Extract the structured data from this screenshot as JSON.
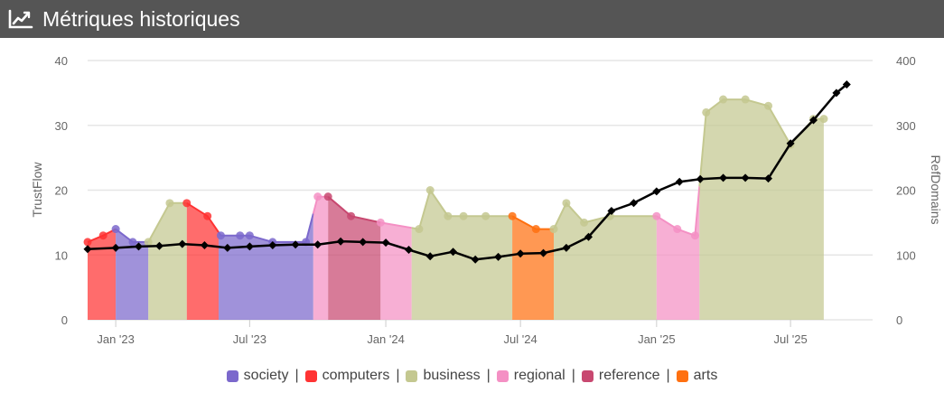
{
  "header": {
    "title": "Métriques historiques",
    "icon": "line-chart-icon"
  },
  "chart_data": {
    "type": "area",
    "title": "Métriques historiques",
    "ylabel_left": "TrustFlow",
    "ylabel_right": "RefDomains",
    "ylim_left": [
      0,
      40
    ],
    "ylim_right": [
      0,
      400
    ],
    "yticks_left": [
      0,
      10,
      20,
      30,
      40
    ],
    "yticks_right": [
      0,
      100,
      200,
      300,
      400
    ],
    "xlim": [
      "2022-11-24",
      "2025-10-20"
    ],
    "x_ticks": [
      {
        "date": "2023-01-01",
        "label": "Jan '23"
      },
      {
        "date": "2023-07-01",
        "label": "Jul '23"
      },
      {
        "date": "2024-01-01",
        "label": "Jan '24"
      },
      {
        "date": "2024-07-01",
        "label": "Jul '24"
      },
      {
        "date": "2025-01-01",
        "label": "Jan '25"
      },
      {
        "date": "2025-07-01",
        "label": "Jul '25"
      }
    ],
    "grid": true,
    "legend_position": "bottom-center",
    "categories": [
      {
        "name": "society",
        "color": "#7b68cc"
      },
      {
        "name": "computers",
        "color": "#ff3333"
      },
      {
        "name": "business",
        "color": "#c4c890"
      },
      {
        "name": "regional",
        "color": "#f490c4"
      },
      {
        "name": "reference",
        "color": "#c84870"
      },
      {
        "name": "arts",
        "color": "#ff7010"
      }
    ],
    "trustflow": {
      "points": [
        {
          "date": "2022-11-24",
          "value": 12
        },
        {
          "date": "2022-12-15",
          "value": 13
        },
        {
          "date": "2023-01-01",
          "value": 14
        },
        {
          "date": "2023-01-24",
          "value": 12
        },
        {
          "date": "2023-02-14",
          "value": 12
        },
        {
          "date": "2023-03-15",
          "value": 18
        },
        {
          "date": "2023-04-07",
          "value": 18
        },
        {
          "date": "2023-05-05",
          "value": 16
        },
        {
          "date": "2023-05-23",
          "value": 13
        },
        {
          "date": "2023-06-18",
          "value": 13
        },
        {
          "date": "2023-07-01",
          "value": 13
        },
        {
          "date": "2023-08-01",
          "value": 12
        },
        {
          "date": "2023-09-15",
          "value": 12
        },
        {
          "date": "2023-10-01",
          "value": 19
        },
        {
          "date": "2023-10-15",
          "value": 19
        },
        {
          "date": "2023-11-15",
          "value": 16
        },
        {
          "date": "2023-12-25",
          "value": 15
        },
        {
          "date": "2024-02-15",
          "value": 14
        },
        {
          "date": "2024-03-01",
          "value": 20
        },
        {
          "date": "2024-03-25",
          "value": 16
        },
        {
          "date": "2024-04-15",
          "value": 16
        },
        {
          "date": "2024-05-15",
          "value": 16
        },
        {
          "date": "2024-06-20",
          "value": 16
        },
        {
          "date": "2024-07-22",
          "value": 14
        },
        {
          "date": "2024-08-15",
          "value": 14
        },
        {
          "date": "2024-09-01",
          "value": 18
        },
        {
          "date": "2024-09-25",
          "value": 15
        },
        {
          "date": "2024-10-30",
          "value": 16
        },
        {
          "date": "2025-01-01",
          "value": 16
        },
        {
          "date": "2025-01-29",
          "value": 14
        },
        {
          "date": "2025-02-22",
          "value": 13
        },
        {
          "date": "2025-03-09",
          "value": 32
        },
        {
          "date": "2025-04-01",
          "value": 34
        },
        {
          "date": "2025-05-01",
          "value": 34
        },
        {
          "date": "2025-06-01",
          "value": 33
        },
        {
          "date": "2025-07-01",
          "value": 27
        },
        {
          "date": "2025-08-01",
          "value": 31
        },
        {
          "date": "2025-08-15",
          "value": 31
        }
      ],
      "segments": [
        {
          "category": "computers",
          "from": "2022-11-24",
          "to": "2023-01-01"
        },
        {
          "category": "society",
          "from": "2023-01-01",
          "to": "2023-02-14"
        },
        {
          "category": "business",
          "from": "2023-02-14",
          "to": "2023-04-07"
        },
        {
          "category": "computers",
          "from": "2023-04-07",
          "to": "2023-05-20"
        },
        {
          "category": "society",
          "from": "2023-05-20",
          "to": "2023-09-25"
        },
        {
          "category": "regional",
          "from": "2023-09-25",
          "to": "2023-10-15"
        },
        {
          "category": "reference",
          "from": "2023-10-15",
          "to": "2023-12-25"
        },
        {
          "category": "regional",
          "from": "2023-12-25",
          "to": "2024-02-05"
        },
        {
          "category": "business",
          "from": "2024-02-05",
          "to": "2024-06-20"
        },
        {
          "category": "arts",
          "from": "2024-06-20",
          "to": "2024-08-15"
        },
        {
          "category": "business",
          "from": "2024-08-15",
          "to": "2025-01-01"
        },
        {
          "category": "regional",
          "from": "2025-01-01",
          "to": "2025-02-28"
        },
        {
          "category": "business",
          "from": "2025-02-28",
          "to": "2025-08-15"
        }
      ]
    },
    "refdomains": {
      "points": [
        {
          "date": "2022-11-24",
          "value": 109
        },
        {
          "date": "2023-01-01",
          "value": 111
        },
        {
          "date": "2023-02-01",
          "value": 113
        },
        {
          "date": "2023-03-01",
          "value": 114
        },
        {
          "date": "2023-04-01",
          "value": 117
        },
        {
          "date": "2023-05-01",
          "value": 115
        },
        {
          "date": "2023-06-01",
          "value": 111
        },
        {
          "date": "2023-07-01",
          "value": 113
        },
        {
          "date": "2023-08-01",
          "value": 115
        },
        {
          "date": "2023-09-01",
          "value": 116
        },
        {
          "date": "2023-10-01",
          "value": 116
        },
        {
          "date": "2023-11-01",
          "value": 121
        },
        {
          "date": "2023-12-01",
          "value": 120
        },
        {
          "date": "2024-01-01",
          "value": 119
        },
        {
          "date": "2024-02-01",
          "value": 108
        },
        {
          "date": "2024-03-01",
          "value": 98
        },
        {
          "date": "2024-04-01",
          "value": 105
        },
        {
          "date": "2024-05-01",
          "value": 93
        },
        {
          "date": "2024-06-01",
          "value": 97
        },
        {
          "date": "2024-07-01",
          "value": 102
        },
        {
          "date": "2024-08-01",
          "value": 103
        },
        {
          "date": "2024-09-01",
          "value": 111
        },
        {
          "date": "2024-10-01",
          "value": 128
        },
        {
          "date": "2024-11-01",
          "value": 168
        },
        {
          "date": "2024-12-01",
          "value": 180
        },
        {
          "date": "2025-01-01",
          "value": 198
        },
        {
          "date": "2025-02-01",
          "value": 213
        },
        {
          "date": "2025-03-01",
          "value": 217
        },
        {
          "date": "2025-04-01",
          "value": 219
        },
        {
          "date": "2025-05-01",
          "value": 219
        },
        {
          "date": "2025-06-01",
          "value": 218
        },
        {
          "date": "2025-07-01",
          "value": 272
        },
        {
          "date": "2025-08-01",
          "value": 308
        },
        {
          "date": "2025-09-01",
          "value": 350
        },
        {
          "date": "2025-09-15",
          "value": 363
        }
      ]
    }
  }
}
